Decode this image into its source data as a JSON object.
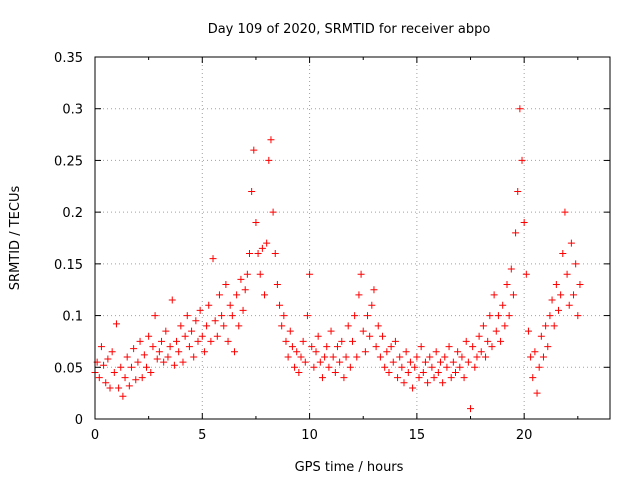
{
  "chart_data": {
    "type": "scatter",
    "title": "Day 109 of 2020, SRMTID for receiver abpo",
    "xlabel": "GPS time / hours",
    "ylabel": "SRMTID / TECUs",
    "xlim": [
      0,
      24
    ],
    "ylim": [
      0,
      0.35
    ],
    "xticks": [
      0,
      5,
      10,
      15,
      20
    ],
    "yticks": [
      0,
      0.05,
      0.1,
      0.15,
      0.2,
      0.25,
      0.3,
      0.35
    ],
    "xtick_labels": [
      "0",
      "5",
      "10",
      "15",
      "20"
    ],
    "ytick_labels": [
      "0",
      "0.05",
      "0.1",
      "0.15",
      "0.2",
      "0.25",
      "0.3",
      "0.35"
    ],
    "grid": true,
    "marker": "+",
    "series": [
      {
        "name": "SRMTID",
        "color": "#ff0000",
        "points": [
          [
            0.0,
            0.045
          ],
          [
            0.1,
            0.055
          ],
          [
            0.2,
            0.04
          ],
          [
            0.3,
            0.07
          ],
          [
            0.4,
            0.052
          ],
          [
            0.5,
            0.035
          ],
          [
            0.6,
            0.058
          ],
          [
            0.7,
            0.03
          ],
          [
            0.8,
            0.065
          ],
          [
            0.9,
            0.045
          ],
          [
            1.0,
            0.092
          ],
          [
            1.1,
            0.03
          ],
          [
            1.2,
            0.05
          ],
          [
            1.3,
            0.022
          ],
          [
            1.4,
            0.04
          ],
          [
            1.5,
            0.06
          ],
          [
            1.6,
            0.032
          ],
          [
            1.7,
            0.05
          ],
          [
            1.8,
            0.068
          ],
          [
            1.9,
            0.038
          ],
          [
            2.0,
            0.055
          ],
          [
            2.1,
            0.075
          ],
          [
            2.2,
            0.04
          ],
          [
            2.3,
            0.062
          ],
          [
            2.4,
            0.05
          ],
          [
            2.5,
            0.08
          ],
          [
            2.6,
            0.045
          ],
          [
            2.7,
            0.07
          ],
          [
            2.8,
            0.1
          ],
          [
            2.9,
            0.058
          ],
          [
            3.0,
            0.065
          ],
          [
            3.1,
            0.075
          ],
          [
            3.2,
            0.055
          ],
          [
            3.3,
            0.085
          ],
          [
            3.4,
            0.06
          ],
          [
            3.5,
            0.07
          ],
          [
            3.6,
            0.115
          ],
          [
            3.7,
            0.052
          ],
          [
            3.8,
            0.075
          ],
          [
            3.9,
            0.065
          ],
          [
            4.0,
            0.09
          ],
          [
            4.1,
            0.055
          ],
          [
            4.2,
            0.08
          ],
          [
            4.3,
            0.1
          ],
          [
            4.4,
            0.07
          ],
          [
            4.5,
            0.085
          ],
          [
            4.6,
            0.06
          ],
          [
            4.7,
            0.095
          ],
          [
            4.8,
            0.075
          ],
          [
            4.9,
            0.105
          ],
          [
            5.0,
            0.08
          ],
          [
            5.1,
            0.065
          ],
          [
            5.2,
            0.09
          ],
          [
            5.3,
            0.11
          ],
          [
            5.4,
            0.075
          ],
          [
            5.5,
            0.155
          ],
          [
            5.6,
            0.095
          ],
          [
            5.7,
            0.08
          ],
          [
            5.8,
            0.12
          ],
          [
            5.9,
            0.1
          ],
          [
            6.0,
            0.09
          ],
          [
            6.1,
            0.13
          ],
          [
            6.2,
            0.075
          ],
          [
            6.3,
            0.11
          ],
          [
            6.4,
            0.1
          ],
          [
            6.5,
            0.065
          ],
          [
            6.6,
            0.12
          ],
          [
            6.7,
            0.09
          ],
          [
            6.8,
            0.135
          ],
          [
            6.9,
            0.105
          ],
          [
            7.0,
            0.125
          ],
          [
            7.1,
            0.14
          ],
          [
            7.2,
            0.16
          ],
          [
            7.3,
            0.22
          ],
          [
            7.4,
            0.26
          ],
          [
            7.5,
            0.19
          ],
          [
            7.6,
            0.16
          ],
          [
            7.7,
            0.14
          ],
          [
            7.8,
            0.165
          ],
          [
            7.9,
            0.12
          ],
          [
            8.0,
            0.17
          ],
          [
            8.1,
            0.25
          ],
          [
            8.2,
            0.27
          ],
          [
            8.3,
            0.2
          ],
          [
            8.4,
            0.16
          ],
          [
            8.5,
            0.13
          ],
          [
            8.6,
            0.11
          ],
          [
            8.7,
            0.09
          ],
          [
            8.8,
            0.1
          ],
          [
            8.9,
            0.075
          ],
          [
            9.0,
            0.06
          ],
          [
            9.1,
            0.085
          ],
          [
            9.2,
            0.07
          ],
          [
            9.3,
            0.05
          ],
          [
            9.4,
            0.065
          ],
          [
            9.5,
            0.045
          ],
          [
            9.6,
            0.06
          ],
          [
            9.7,
            0.075
          ],
          [
            9.8,
            0.055
          ],
          [
            9.9,
            0.1
          ],
          [
            10.0,
            0.14
          ],
          [
            10.1,
            0.07
          ],
          [
            10.2,
            0.05
          ],
          [
            10.3,
            0.065
          ],
          [
            10.4,
            0.08
          ],
          [
            10.5,
            0.055
          ],
          [
            10.6,
            0.04
          ],
          [
            10.7,
            0.06
          ],
          [
            10.8,
            0.07
          ],
          [
            10.9,
            0.05
          ],
          [
            11.0,
            0.085
          ],
          [
            11.1,
            0.06
          ],
          [
            11.2,
            0.045
          ],
          [
            11.3,
            0.07
          ],
          [
            11.4,
            0.055
          ],
          [
            11.5,
            0.075
          ],
          [
            11.6,
            0.04
          ],
          [
            11.7,
            0.06
          ],
          [
            11.8,
            0.09
          ],
          [
            11.9,
            0.05
          ],
          [
            12.0,
            0.075
          ],
          [
            12.1,
            0.1
          ],
          [
            12.2,
            0.06
          ],
          [
            12.3,
            0.12
          ],
          [
            12.4,
            0.14
          ],
          [
            12.5,
            0.085
          ],
          [
            12.6,
            0.065
          ],
          [
            12.7,
            0.1
          ],
          [
            12.8,
            0.08
          ],
          [
            12.9,
            0.11
          ],
          [
            13.0,
            0.125
          ],
          [
            13.1,
            0.07
          ],
          [
            13.2,
            0.09
          ],
          [
            13.3,
            0.06
          ],
          [
            13.4,
            0.08
          ],
          [
            13.5,
            0.05
          ],
          [
            13.6,
            0.065
          ],
          [
            13.7,
            0.045
          ],
          [
            13.8,
            0.07
          ],
          [
            13.9,
            0.055
          ],
          [
            14.0,
            0.075
          ],
          [
            14.1,
            0.04
          ],
          [
            14.2,
            0.06
          ],
          [
            14.3,
            0.05
          ],
          [
            14.4,
            0.035
          ],
          [
            14.5,
            0.065
          ],
          [
            14.6,
            0.045
          ],
          [
            14.7,
            0.055
          ],
          [
            14.8,
            0.03
          ],
          [
            14.9,
            0.05
          ],
          [
            15.0,
            0.06
          ],
          [
            15.1,
            0.04
          ],
          [
            15.2,
            0.07
          ],
          [
            15.3,
            0.045
          ],
          [
            15.4,
            0.055
          ],
          [
            15.5,
            0.035
          ],
          [
            15.6,
            0.06
          ],
          [
            15.7,
            0.05
          ],
          [
            15.8,
            0.04
          ],
          [
            15.9,
            0.065
          ],
          [
            16.0,
            0.045
          ],
          [
            16.1,
            0.055
          ],
          [
            16.2,
            0.035
          ],
          [
            16.3,
            0.06
          ],
          [
            16.4,
            0.05
          ],
          [
            16.5,
            0.07
          ],
          [
            16.6,
            0.04
          ],
          [
            16.7,
            0.055
          ],
          [
            16.8,
            0.045
          ],
          [
            16.9,
            0.065
          ],
          [
            17.0,
            0.05
          ],
          [
            17.1,
            0.06
          ],
          [
            17.2,
            0.04
          ],
          [
            17.3,
            0.075
          ],
          [
            17.4,
            0.055
          ],
          [
            17.5,
            0.01
          ],
          [
            17.6,
            0.07
          ],
          [
            17.7,
            0.05
          ],
          [
            17.8,
            0.06
          ],
          [
            17.9,
            0.08
          ],
          [
            18.0,
            0.065
          ],
          [
            18.1,
            0.09
          ],
          [
            18.2,
            0.06
          ],
          [
            18.3,
            0.075
          ],
          [
            18.4,
            0.1
          ],
          [
            18.5,
            0.07
          ],
          [
            18.6,
            0.12
          ],
          [
            18.7,
            0.085
          ],
          [
            18.8,
            0.1
          ],
          [
            18.9,
            0.075
          ],
          [
            19.0,
            0.11
          ],
          [
            19.1,
            0.09
          ],
          [
            19.2,
            0.13
          ],
          [
            19.3,
            0.1
          ],
          [
            19.4,
            0.145
          ],
          [
            19.5,
            0.12
          ],
          [
            19.6,
            0.18
          ],
          [
            19.7,
            0.22
          ],
          [
            19.8,
            0.3
          ],
          [
            19.9,
            0.25
          ],
          [
            20.0,
            0.19
          ],
          [
            20.1,
            0.14
          ],
          [
            20.2,
            0.085
          ],
          [
            20.3,
            0.06
          ],
          [
            20.4,
            0.04
          ],
          [
            20.5,
            0.065
          ],
          [
            20.6,
            0.025
          ],
          [
            20.7,
            0.05
          ],
          [
            20.8,
            0.08
          ],
          [
            20.9,
            0.06
          ],
          [
            21.0,
            0.09
          ],
          [
            21.1,
            0.07
          ],
          [
            21.2,
            0.1
          ],
          [
            21.3,
            0.115
          ],
          [
            21.4,
            0.09
          ],
          [
            21.5,
            0.13
          ],
          [
            21.6,
            0.105
          ],
          [
            21.7,
            0.12
          ],
          [
            21.8,
            0.16
          ],
          [
            21.9,
            0.2
          ],
          [
            22.0,
            0.14
          ],
          [
            22.1,
            0.11
          ],
          [
            22.2,
            0.17
          ],
          [
            22.3,
            0.12
          ],
          [
            22.4,
            0.15
          ],
          [
            22.5,
            0.1
          ],
          [
            22.6,
            0.13
          ]
        ]
      }
    ]
  }
}
